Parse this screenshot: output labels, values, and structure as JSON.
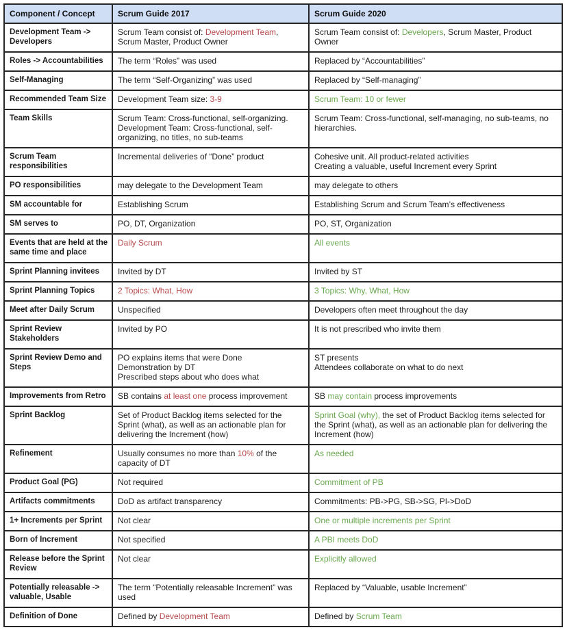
{
  "colors": {
    "red_text": "#b5494b",
    "green_text": "#6aa84f",
    "header_bg": "#cfddf5",
    "border": "#262626"
  },
  "table": {
    "headers": [
      "Component / Concept",
      "Scrum Guide 2017",
      "Scrum Guide 2020"
    ],
    "rows": [
      {
        "concept": "Development Team -> Developers",
        "g2017": [
          {
            "t": "Scrum Team consist of: "
          },
          {
            "t": "Development Team",
            "c": "red"
          },
          {
            "t": ", Scrum Master, Product Owner"
          }
        ],
        "g2020": [
          {
            "t": "Scrum Team consist of: "
          },
          {
            "t": "Developers",
            "c": "green"
          },
          {
            "t": ", Scrum Master, Product Owner"
          }
        ]
      },
      {
        "concept": "Roles -> Accountabilities",
        "g2017": [
          {
            "t": "The term “Roles” was used"
          }
        ],
        "g2020": [
          {
            "t": "Replaced by “Accountabilities”"
          }
        ]
      },
      {
        "concept": "Self-Managing",
        "g2017": [
          {
            "t": "The term “Self-Organizing” was used"
          }
        ],
        "g2020": [
          {
            "t": "Replaced by “Self-managing”"
          }
        ]
      },
      {
        "concept": "Recommended Team Size",
        "g2017": [
          {
            "t": "Development Team size: "
          },
          {
            "t": "3-9",
            "c": "red"
          }
        ],
        "g2020": [
          {
            "t": "Scrum Team: 10 or fewer",
            "c": "green"
          }
        ]
      },
      {
        "concept": "Team Skills",
        "g2017": [
          {
            "t": "Scrum Team: Cross-functional, self-organizing.\nDevelopment Team: Cross-functional, self-organizing, no titles, no sub-teams"
          }
        ],
        "g2020": [
          {
            "t": "Scrum Team: Cross-functional, self-managing, no sub-teams, no hierarchies."
          }
        ]
      },
      {
        "concept": "Scrum Team responsibilities",
        "g2017": [
          {
            "t": "Incremental deliveries of “Done” product"
          }
        ],
        "g2020": [
          {
            "t": "Cohesive unit. All product-related activities\nCreating a valuable, useful Increment every Sprint"
          }
        ]
      },
      {
        "concept": "PO responsibilities",
        "g2017": [
          {
            "t": "may delegate to the Development Team"
          }
        ],
        "g2020": [
          {
            "t": "may delegate to others"
          }
        ]
      },
      {
        "concept": "SM accountable for",
        "g2017": [
          {
            "t": "Establishing Scrum"
          }
        ],
        "g2020": [
          {
            "t": "Establishing Scrum and Scrum Team’s effectiveness"
          }
        ]
      },
      {
        "concept": "SM serves to",
        "g2017": [
          {
            "t": "PO, DT, Organization"
          }
        ],
        "g2020": [
          {
            "t": "PO, ST, Organization"
          }
        ]
      },
      {
        "concept": "Events that are held at the same time and place",
        "g2017": [
          {
            "t": "Daily Scrum",
            "c": "red"
          }
        ],
        "g2020": [
          {
            "t": "All events",
            "c": "green"
          }
        ]
      },
      {
        "concept": "Sprint Planning invitees",
        "g2017": [
          {
            "t": "Invited by DT"
          }
        ],
        "g2020": [
          {
            "t": "Invited by ST"
          }
        ]
      },
      {
        "concept": "Sprint Planning Topics",
        "g2017": [
          {
            "t": "2 Topics: What, How",
            "c": "red"
          }
        ],
        "g2020": [
          {
            "t": "3 Topics: Why, What, How",
            "c": "green"
          }
        ]
      },
      {
        "concept": "Meet after Daily Scrum",
        "g2017": [
          {
            "t": "Unspecified"
          }
        ],
        "g2020": [
          {
            "t": "Developers often meet throughout the day"
          }
        ]
      },
      {
        "concept": "Sprint Review Stakeholders",
        "g2017": [
          {
            "t": "Invited by PO"
          }
        ],
        "g2020": [
          {
            "t": "It is not prescribed who invite them"
          }
        ]
      },
      {
        "concept": "Sprint Review Demo and Steps",
        "g2017": [
          {
            "t": "PO explains items that were Done\nDemonstration by DT\nPrescribed steps about who does what"
          }
        ],
        "g2020": [
          {
            "t": "ST presents\nAttendees collaborate on what to do next"
          }
        ]
      },
      {
        "concept": "Improvements from Retro",
        "g2017": [
          {
            "t": "SB contains "
          },
          {
            "t": "at least one",
            "c": "red"
          },
          {
            "t": " process improvement"
          }
        ],
        "g2020": [
          {
            "t": "SB "
          },
          {
            "t": "may contain",
            "c": "green"
          },
          {
            "t": " process improvements"
          }
        ]
      },
      {
        "concept": "Sprint Backlog",
        "g2017": [
          {
            "t": "Set of Product Backlog items selected for the Sprint (what), as well as an actionable plan for delivering the Increment (how)"
          }
        ],
        "g2020": [
          {
            "t": "Sprint Goal (why),",
            "c": "green"
          },
          {
            "t": " the set of Product Backlog items selected for the Sprint (what), as well as an actionable plan for delivering the Increment (how)"
          }
        ]
      },
      {
        "concept": "Refinement",
        "g2017": [
          {
            "t": "Usually consumes no more than "
          },
          {
            "t": "10%",
            "c": "red"
          },
          {
            "t": " of the capacity of DT"
          }
        ],
        "g2020": [
          {
            "t": "As needed",
            "c": "green"
          }
        ]
      },
      {
        "concept": "Product Goal (PG)",
        "g2017": [
          {
            "t": "Not required"
          }
        ],
        "g2020": [
          {
            "t": "Commitment of PB",
            "c": "green"
          }
        ]
      },
      {
        "concept": "Artifacts commitments",
        "g2017": [
          {
            "t": "DoD as artifact transparency"
          }
        ],
        "g2020": [
          {
            "t": "Commitments: PB->PG, SB->SG, PI->DoD"
          }
        ]
      },
      {
        "concept": "1+ Increments per Sprint",
        "g2017": [
          {
            "t": "Not clear"
          }
        ],
        "g2020": [
          {
            "t": "One or multiple increments per Sprint",
            "c": "green"
          }
        ]
      },
      {
        "concept": "Born of Increment",
        "g2017": [
          {
            "t": "Not specified"
          }
        ],
        "g2020": [
          {
            "t": "A PBI meets DoD",
            "c": "green"
          }
        ]
      },
      {
        "concept": "Release before the Sprint Review",
        "g2017": [
          {
            "t": "Not clear"
          }
        ],
        "g2020": [
          {
            "t": "Explicitly allowed",
            "c": "green"
          }
        ]
      },
      {
        "concept": "Potentially releasable -> valuable, Usable",
        "g2017": [
          {
            "t": "The term “Potentially releasable Increment” was used"
          }
        ],
        "g2020": [
          {
            "t": "Replaced by “Valuable, usable Increment”"
          }
        ]
      },
      {
        "concept": "Definition of Done",
        "g2017": [
          {
            "t": "Defined by "
          },
          {
            "t": "Development Team",
            "c": "red"
          }
        ],
        "g2020": [
          {
            "t": "Defined by "
          },
          {
            "t": "Scrum Team",
            "c": "green"
          }
        ]
      }
    ]
  }
}
